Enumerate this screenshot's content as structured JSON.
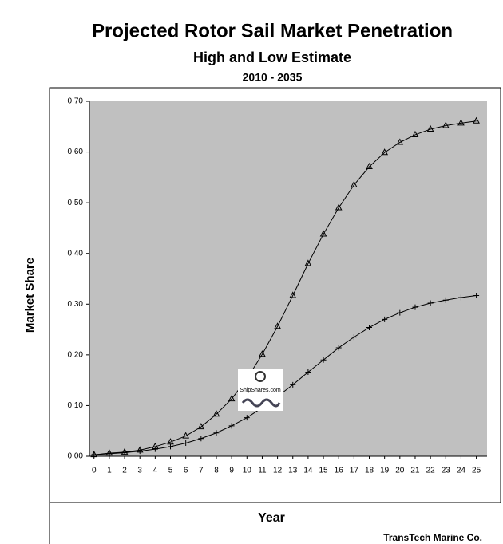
{
  "chart_data": {
    "type": "line",
    "title": "Projected Rotor Sail Market Penetration",
    "subtitle": "High and Low Estimate",
    "period": "2010 - 2035",
    "xlabel": "Year",
    "ylabel": "Market Share",
    "source": "TransTech Marine Co.",
    "logo_text": "ShipShares.com",
    "plot_background": "#c0c0c0",
    "x": [
      0,
      1,
      2,
      3,
      4,
      5,
      6,
      7,
      8,
      9,
      10,
      11,
      12,
      13,
      14,
      15,
      16,
      17,
      18,
      19,
      20,
      21,
      22,
      23,
      24,
      25
    ],
    "xlim": [
      -0.3,
      25.7
    ],
    "xticks": [
      0,
      1,
      2,
      3,
      4,
      5,
      6,
      7,
      8,
      9,
      10,
      11,
      12,
      13,
      14,
      15,
      16,
      17,
      18,
      19,
      20,
      21,
      22,
      23,
      24,
      25
    ],
    "ylim": [
      0,
      0.7
    ],
    "yticks": [
      {
        "value": 0,
        "label": "0.00"
      },
      {
        "value": 0.1,
        "label": "0.10"
      },
      {
        "value": 0.2,
        "label": "0.20"
      },
      {
        "value": 0.3,
        "label": "0.30"
      },
      {
        "value": 0.4,
        "label": "0.40"
      },
      {
        "value": 0.5,
        "label": "0.50"
      },
      {
        "value": 0.6,
        "label": "0.60"
      },
      {
        "value": 0.7,
        "label": "0.70"
      }
    ],
    "series": [
      {
        "color": "#000000",
        "marker": "triangle",
        "values": [
          0.003,
          0.006,
          0.008,
          0.012,
          0.019,
          0.028,
          0.04,
          0.058,
          0.083,
          0.113,
          0.153,
          0.201,
          0.256,
          0.317,
          0.38,
          0.438,
          0.49,
          0.535,
          0.571,
          0.599,
          0.619,
          0.634,
          0.645,
          0.652,
          0.657,
          0.661
        ]
      },
      {
        "color": "#000000",
        "marker": "plus",
        "values": [
          0.003,
          0.005,
          0.007,
          0.01,
          0.014,
          0.019,
          0.026,
          0.035,
          0.046,
          0.06,
          0.076,
          0.096,
          0.118,
          0.141,
          0.166,
          0.19,
          0.214,
          0.235,
          0.254,
          0.27,
          0.283,
          0.294,
          0.302,
          0.308,
          0.313,
          0.317
        ]
      }
    ]
  }
}
